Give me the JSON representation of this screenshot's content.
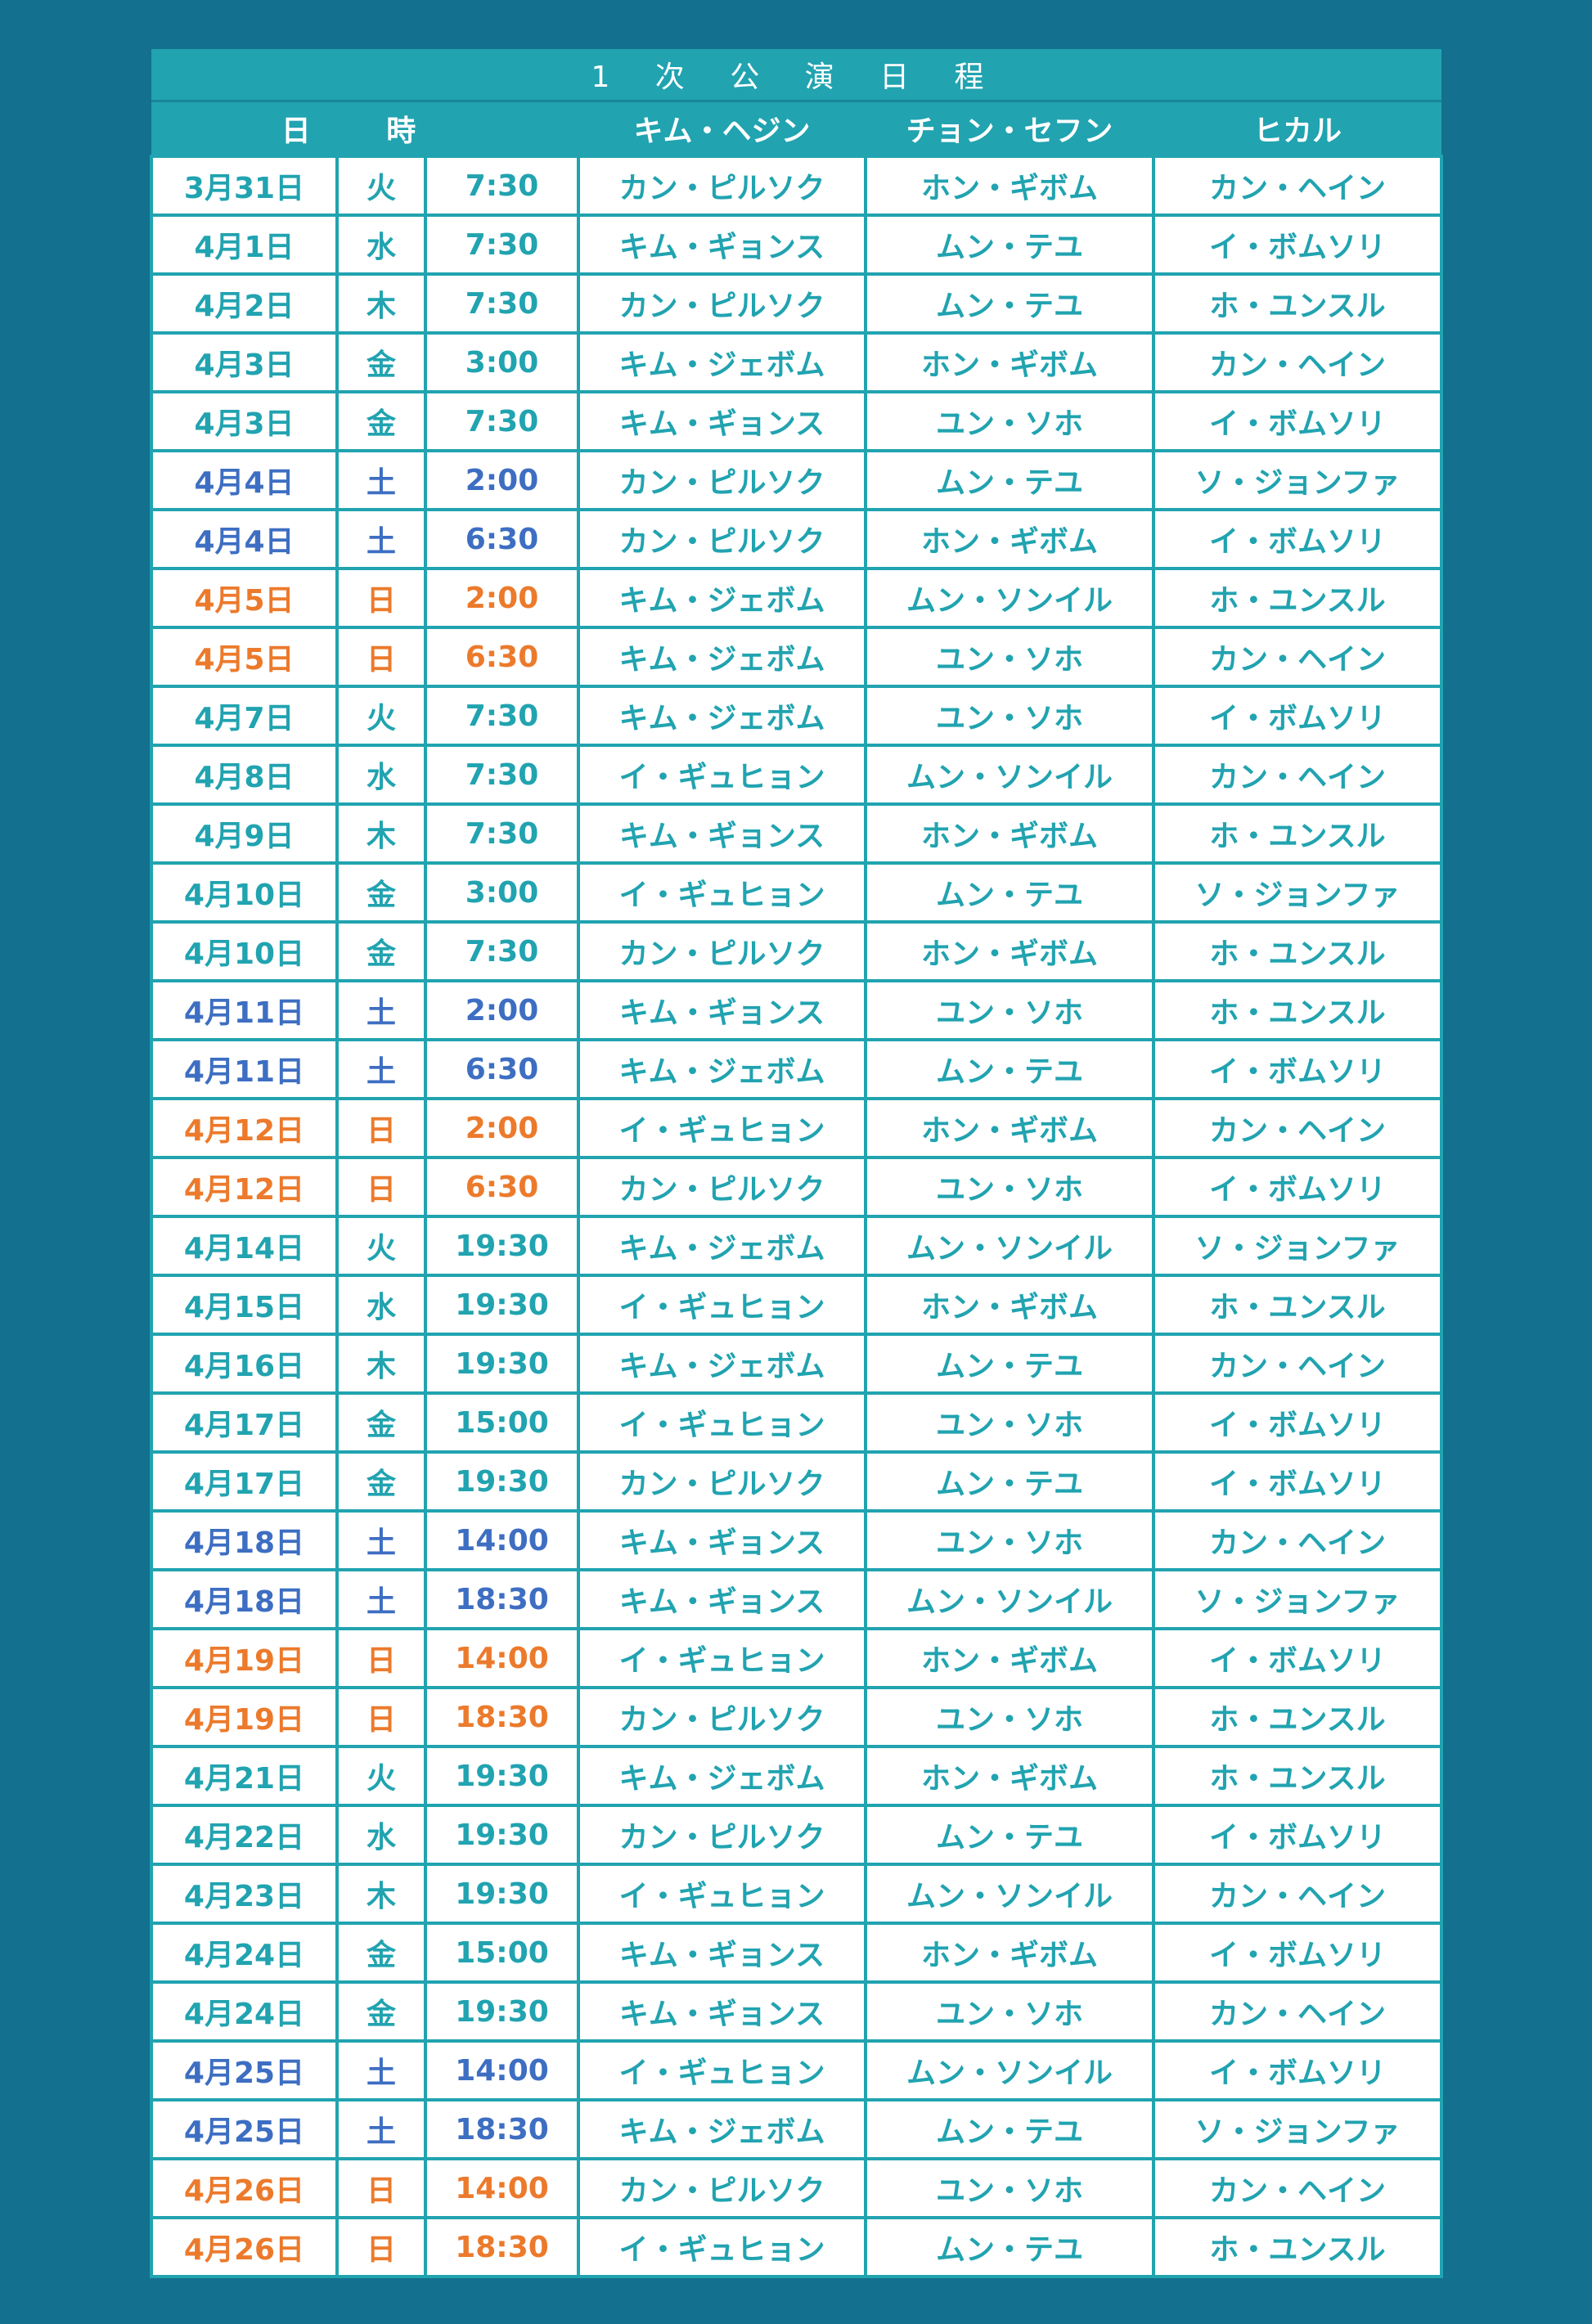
{
  "title": "1 次 公 演 日 程",
  "headers": {
    "datetime": "日 時",
    "cast1": "キム・ヘジン",
    "cast2": "チョン・セフン",
    "cast3": "ヒカル"
  },
  "colors": {
    "background": "#13708f",
    "accent": "#21a3b0",
    "weekday": "#21a3b0",
    "saturday": "#3d6ec2",
    "sunday": "#ec7a2c"
  },
  "rows": [
    [
      "3月31日",
      "火",
      "7:30",
      "カン・ピルソク",
      "ホン・ギボム",
      "カン・ヘイン"
    ],
    [
      "4月1日",
      "水",
      "7:30",
      "キム・ギョンス",
      "ムン・テユ",
      "イ・ボムソリ"
    ],
    [
      "4月2日",
      "木",
      "7:30",
      "カン・ピルソク",
      "ムン・テユ",
      "ホ・ユンスル"
    ],
    [
      "4月3日",
      "金",
      "3:00",
      "キム・ジェボム",
      "ホン・ギボム",
      "カン・ヘイン"
    ],
    [
      "4月3日",
      "金",
      "7:30",
      "キム・ギョンス",
      "ユン・ソホ",
      "イ・ボムソリ"
    ],
    [
      "4月4日",
      "土",
      "2:00",
      "カン・ピルソク",
      "ムン・テユ",
      "ソ・ジョンファ"
    ],
    [
      "4月4日",
      "土",
      "6:30",
      "カン・ピルソク",
      "ホン・ギボム",
      "イ・ボムソリ"
    ],
    [
      "4月5日",
      "日",
      "2:00",
      "キム・ジェボム",
      "ムン・ソンイル",
      "ホ・ユンスル"
    ],
    [
      "4月5日",
      "日",
      "6:30",
      "キム・ジェボム",
      "ユン・ソホ",
      "カン・ヘイン"
    ],
    [
      "4月7日",
      "火",
      "7:30",
      "キム・ジェボム",
      "ユン・ソホ",
      "イ・ボムソリ"
    ],
    [
      "4月8日",
      "水",
      "7:30",
      "イ・ギュヒョン",
      "ムン・ソンイル",
      "カン・ヘイン"
    ],
    [
      "4月9日",
      "木",
      "7:30",
      "キム・ギョンス",
      "ホン・ギボム",
      "ホ・ユンスル"
    ],
    [
      "4月10日",
      "金",
      "3:00",
      "イ・ギュヒョン",
      "ムン・テユ",
      "ソ・ジョンファ"
    ],
    [
      "4月10日",
      "金",
      "7:30",
      "カン・ピルソク",
      "ホン・ギボム",
      "ホ・ユンスル"
    ],
    [
      "4月11日",
      "土",
      "2:00",
      "キム・ギョンス",
      "ユン・ソホ",
      "ホ・ユンスル"
    ],
    [
      "4月11日",
      "土",
      "6:30",
      "キム・ジェボム",
      "ムン・テユ",
      "イ・ボムソリ"
    ],
    [
      "4月12日",
      "日",
      "2:00",
      "イ・ギュヒョン",
      "ホン・ギボム",
      "カン・ヘイン"
    ],
    [
      "4月12日",
      "日",
      "6:30",
      "カン・ピルソク",
      "ユン・ソホ",
      "イ・ボムソリ"
    ],
    [
      "4月14日",
      "火",
      "19:30",
      "キム・ジェボム",
      "ムン・ソンイル",
      "ソ・ジョンファ"
    ],
    [
      "4月15日",
      "水",
      "19:30",
      "イ・ギュヒョン",
      "ホン・ギボム",
      "ホ・ユンスル"
    ],
    [
      "4月16日",
      "木",
      "19:30",
      "キム・ジェボム",
      "ムン・テユ",
      "カン・ヘイン"
    ],
    [
      "4月17日",
      "金",
      "15:00",
      "イ・ギュヒョン",
      "ユン・ソホ",
      "イ・ボムソリ"
    ],
    [
      "4月17日",
      "金",
      "19:30",
      "カン・ピルソク",
      "ムン・テユ",
      "イ・ボムソリ"
    ],
    [
      "4月18日",
      "土",
      "14:00",
      "キム・ギョンス",
      "ユン・ソホ",
      "カン・ヘイン"
    ],
    [
      "4月18日",
      "土",
      "18:30",
      "キム・ギョンス",
      "ムン・ソンイル",
      "ソ・ジョンファ"
    ],
    [
      "4月19日",
      "日",
      "14:00",
      "イ・ギュヒョン",
      "ホン・ギボム",
      "イ・ボムソリ"
    ],
    [
      "4月19日",
      "日",
      "18:30",
      "カン・ピルソク",
      "ユン・ソホ",
      "ホ・ユンスル"
    ],
    [
      "4月21日",
      "火",
      "19:30",
      "キム・ジェボム",
      "ホン・ギボム",
      "ホ・ユンスル"
    ],
    [
      "4月22日",
      "水",
      "19:30",
      "カン・ピルソク",
      "ムン・テユ",
      "イ・ボムソリ"
    ],
    [
      "4月23日",
      "木",
      "19:30",
      "イ・ギュヒョン",
      "ムン・ソンイル",
      "カン・ヘイン"
    ],
    [
      "4月24日",
      "金",
      "15:00",
      "キム・ギョンス",
      "ホン・ギボム",
      "イ・ボムソリ"
    ],
    [
      "4月24日",
      "金",
      "19:30",
      "キム・ギョンス",
      "ユン・ソホ",
      "カン・ヘイン"
    ],
    [
      "4月25日",
      "土",
      "14:00",
      "イ・ギュヒョン",
      "ムン・ソンイル",
      "イ・ボムソリ"
    ],
    [
      "4月25日",
      "土",
      "18:30",
      "キム・ジェボム",
      "ムン・テユ",
      "ソ・ジョンファ"
    ],
    [
      "4月26日",
      "日",
      "14:00",
      "カン・ピルソク",
      "ユン・ソホ",
      "カン・ヘイン"
    ],
    [
      "4月26日",
      "日",
      "18:30",
      "イ・ギュヒョン",
      "ムン・テユ",
      "ホ・ユンスル"
    ]
  ]
}
